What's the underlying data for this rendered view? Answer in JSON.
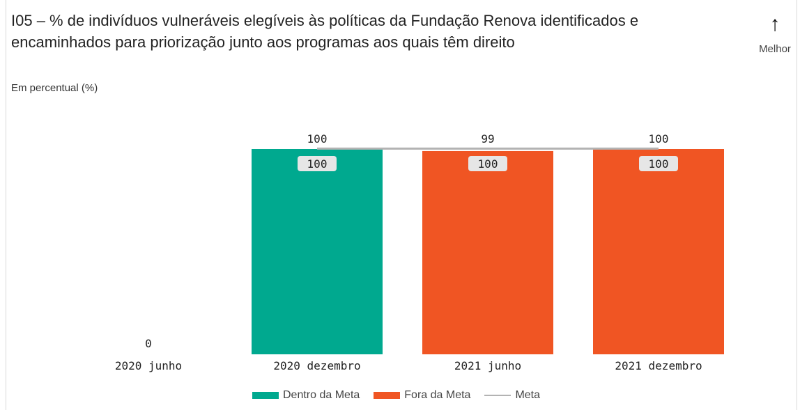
{
  "chart_data": {
    "type": "bar",
    "title": "I05 – % de indivíduos vulneráveis elegíveis às políticas da Fundação Renova identificados e encaminhados para priorização junto aos programas aos quais têm direito",
    "subtitle": "Em percentual (%)",
    "indicator": {
      "arrow": "↑",
      "label": "Melhor"
    },
    "categories": [
      "2020 junho",
      "2020 dezembro",
      "2021 junho",
      "2021 dezembro"
    ],
    "series": [
      {
        "name": "Dentro da Meta",
        "color": "#00a98f",
        "values": [
          null,
          100,
          null,
          null
        ]
      },
      {
        "name": "Fora da Meta",
        "color": "#f05523",
        "values": [
          0,
          null,
          99,
          100
        ]
      },
      {
        "name": "Meta",
        "color": "#b3b3b3",
        "type": "line",
        "values": [
          null,
          100,
          100,
          100
        ]
      }
    ],
    "bar_labels": [
      "0",
      "100",
      "99",
      "100"
    ],
    "meta_labels": [
      null,
      "100",
      "100",
      "100"
    ],
    "ylim": [
      0,
      100
    ],
    "grid": false,
    "legend_position": "bottom"
  }
}
